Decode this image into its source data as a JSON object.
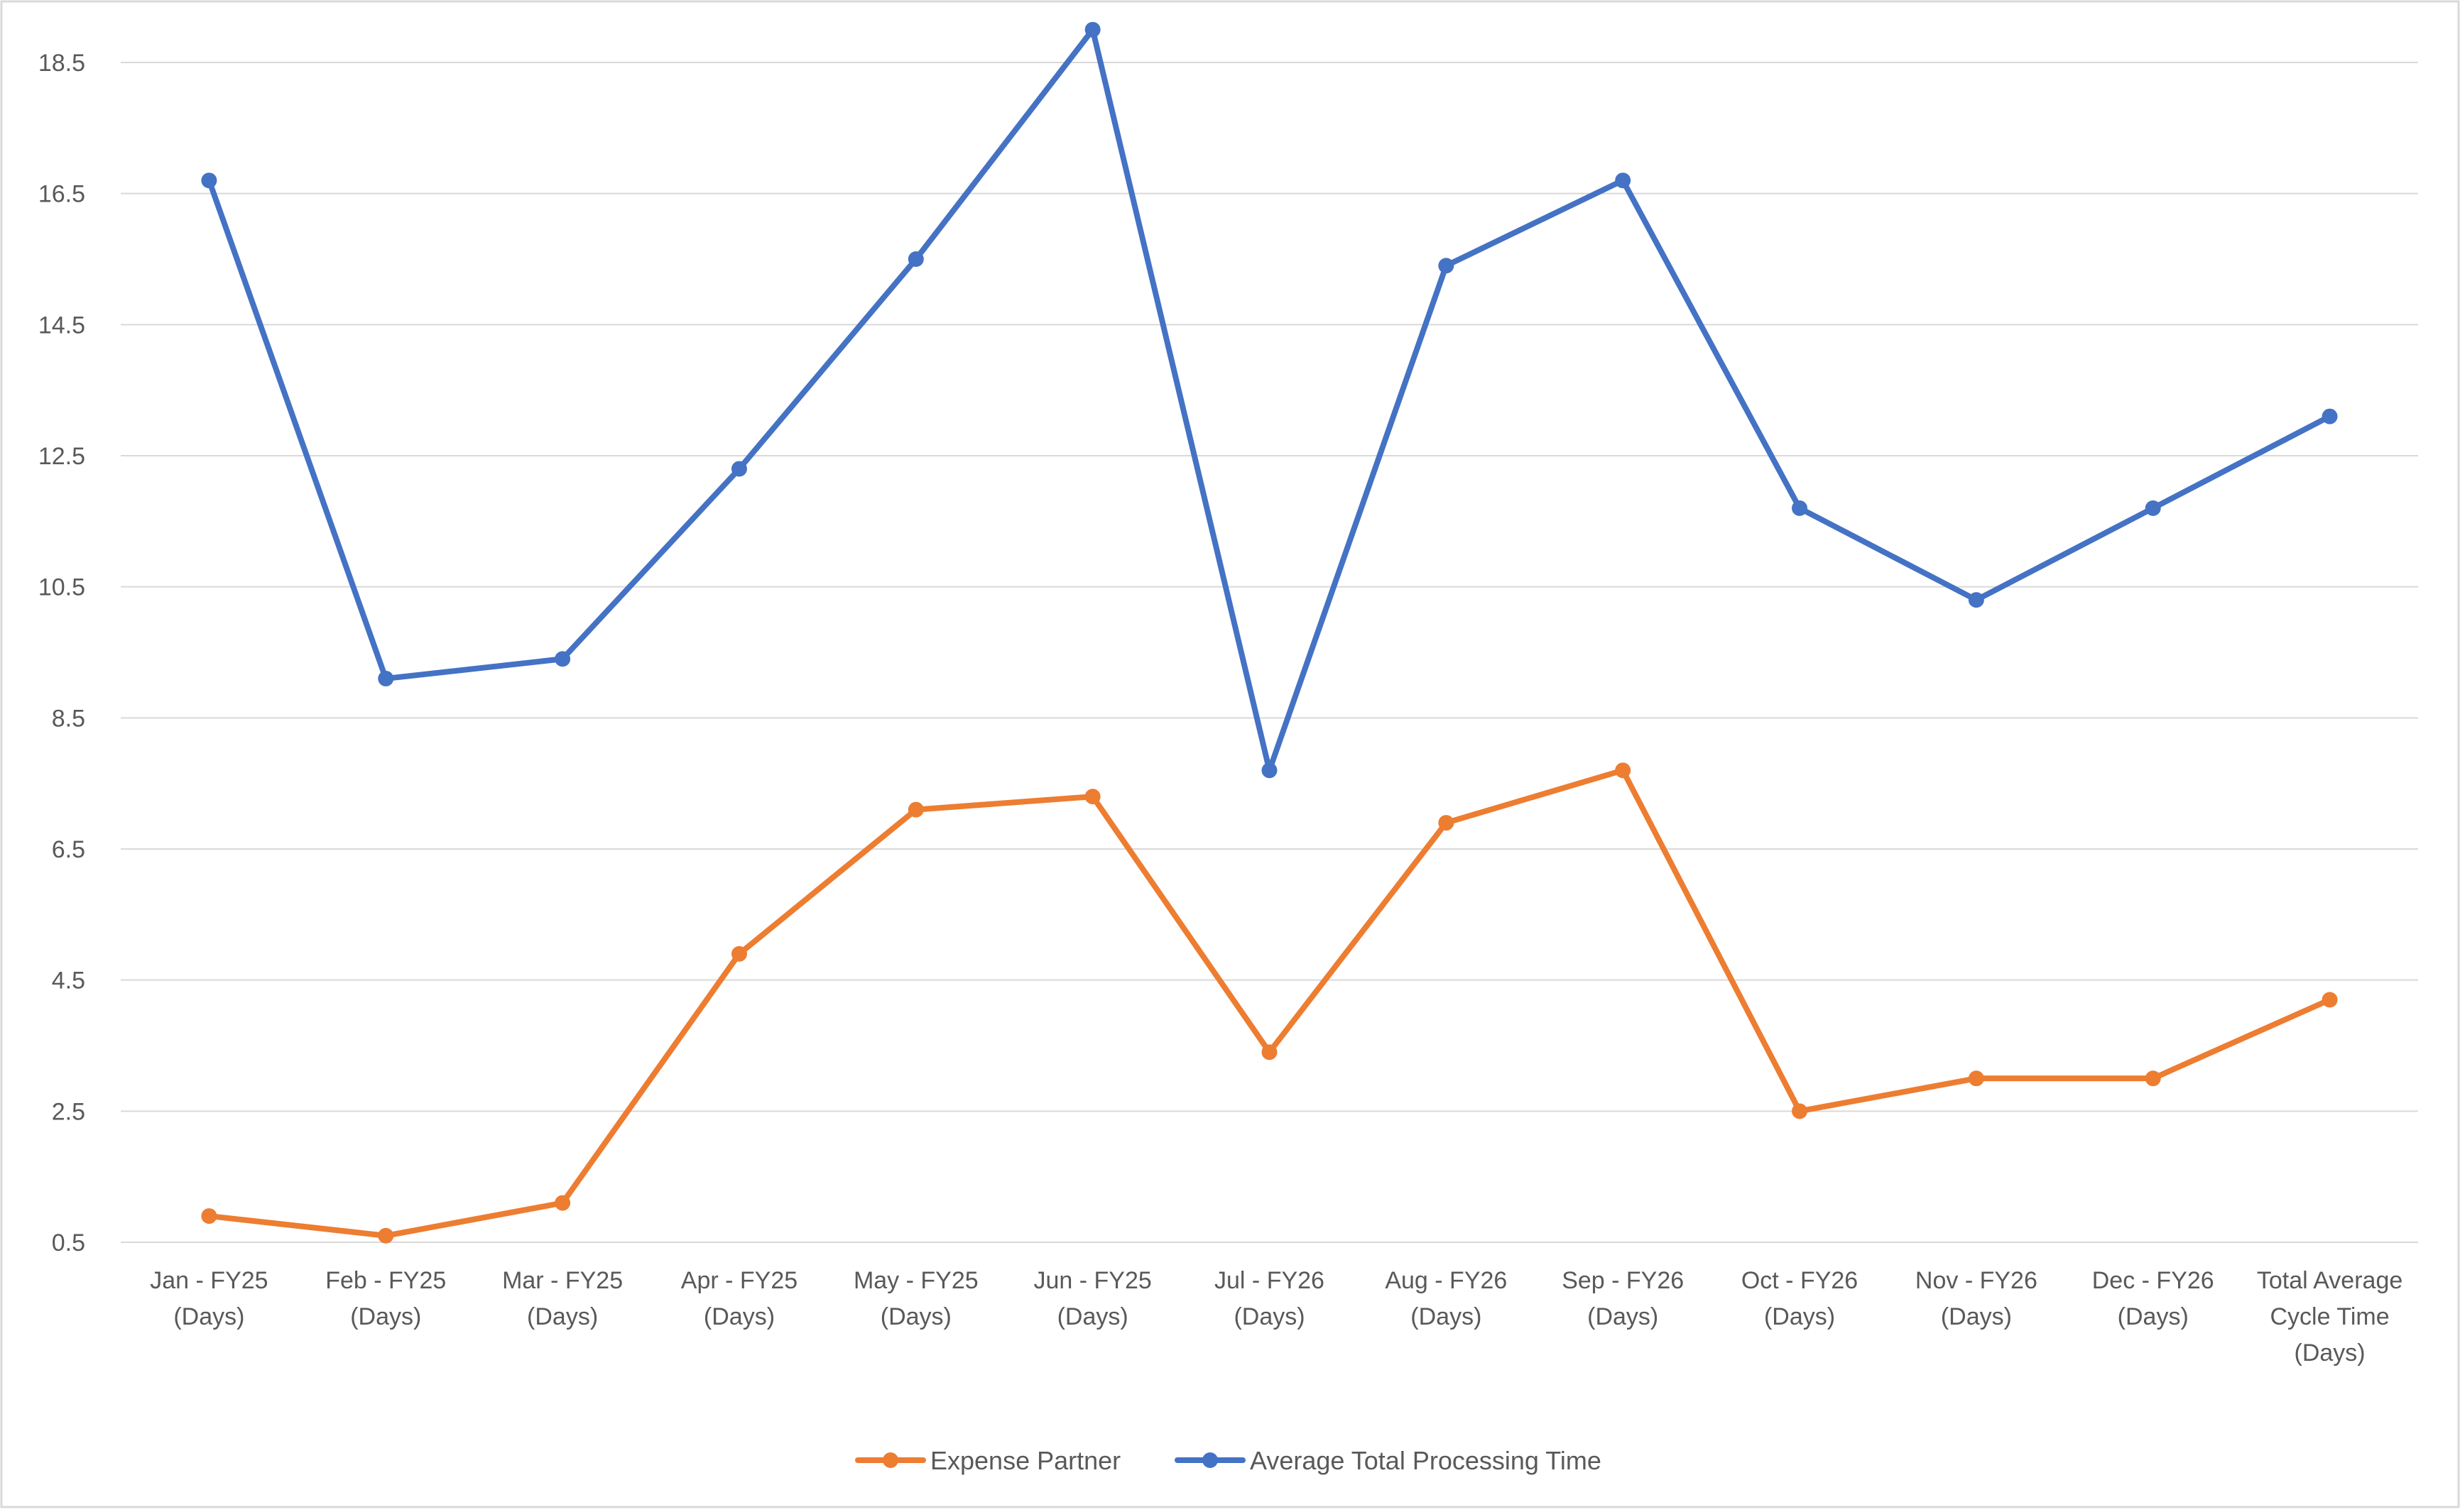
{
  "chart_data": {
    "type": "line",
    "title": "",
    "xlabel": "",
    "ylabel": "",
    "categories": [
      [
        "Jan - FY25",
        "(Days)"
      ],
      [
        "Feb - FY25",
        "(Days)"
      ],
      [
        "Mar - FY25",
        "(Days)"
      ],
      [
        "Apr - FY25",
        "(Days)"
      ],
      [
        "May - FY25",
        "(Days)"
      ],
      [
        "Jun - FY25",
        "(Days)"
      ],
      [
        "Jul - FY26",
        "(Days)"
      ],
      [
        "Aug - FY26",
        "(Days)"
      ],
      [
        "Sep - FY26",
        "(Days)"
      ],
      [
        "Oct - FY26",
        "(Days)"
      ],
      [
        "Nov - FY26",
        "(Days)"
      ],
      [
        "Dec - FY26",
        "(Days)"
      ],
      [
        "Total Average",
        "Cycle Time",
        "(Days)"
      ]
    ],
    "yticks": [
      "0.5",
      "2.5",
      "4.5",
      "6.5",
      "8.5",
      "10.5",
      "12.5",
      "14.5",
      "16.5",
      "18.5"
    ],
    "ylim": [
      0.5,
      18.5
    ],
    "grid": true,
    "legend_position": "bottom",
    "series": [
      {
        "name": "Expense Partner",
        "color": "#ED7D31",
        "values": [
          0.9,
          0.6,
          1.1,
          4.9,
          7.1,
          7.3,
          3.4,
          6.9,
          7.7,
          2.5,
          3.0,
          3.0,
          4.2
        ]
      },
      {
        "name": "Average Total Processing Time",
        "color": "#4472C4",
        "values": [
          16.7,
          9.1,
          9.4,
          12.3,
          15.5,
          19.0,
          7.7,
          15.4,
          16.7,
          11.7,
          10.3,
          11.7,
          13.1
        ]
      }
    ]
  }
}
